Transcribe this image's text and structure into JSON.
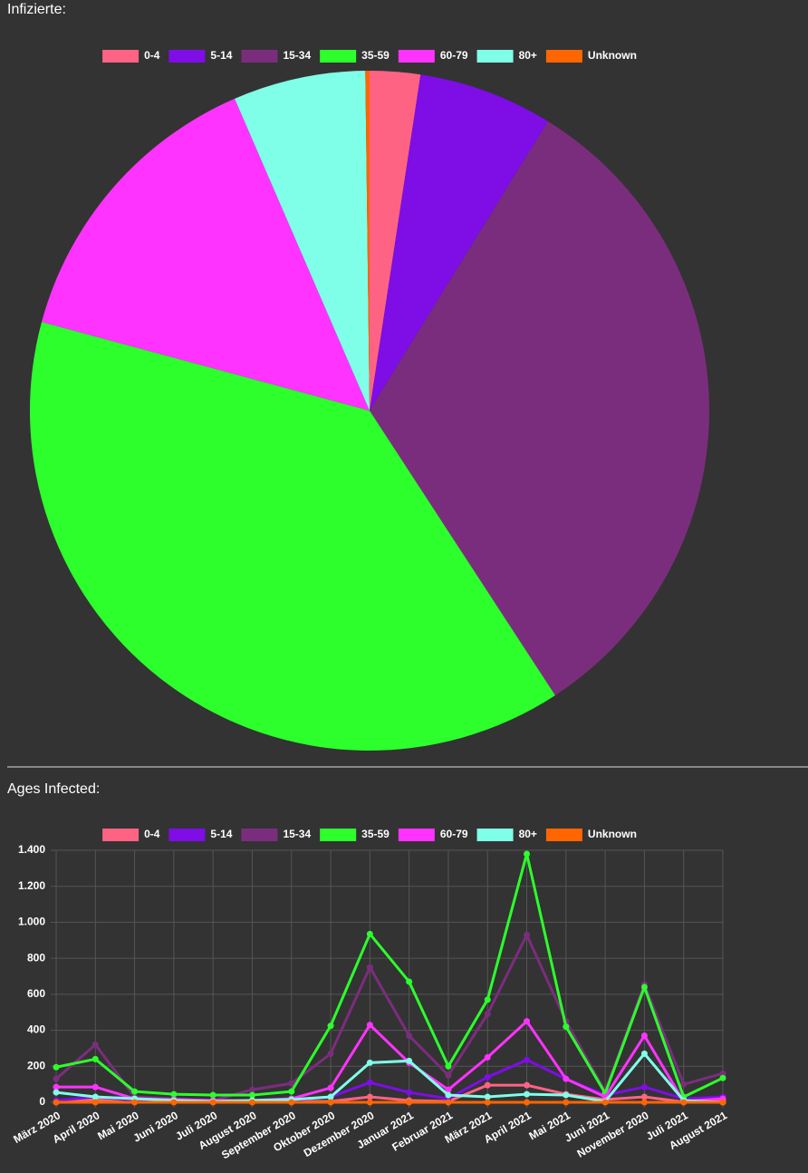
{
  "chart_data": [
    {
      "type": "pie",
      "title": "Infizierte:",
      "categories": [
        "0-4",
        "5-14",
        "15-34",
        "35-59",
        "60-79",
        "80+",
        "Unknown"
      ],
      "values": [
        2.4,
        6.4,
        32,
        38.4,
        14.3,
        6.3,
        0.2
      ],
      "colors": [
        "#ff6384",
        "#7e0de6",
        "#7b2d7d",
        "#2cff2c",
        "#ff33ff",
        "#80ffe8",
        "#ff6600"
      ]
    },
    {
      "type": "line",
      "title": "Ages Infected:",
      "categories": [
        "März 2020",
        "April 2020",
        "Mai 2020",
        "Juni 2020",
        "Juli 2020",
        "August 2020",
        "September 2020",
        "Oktober 2020",
        "Dezember 2020",
        "Januar 2021",
        "Februar 2021",
        "März 2021",
        "April 2021",
        "Mai 2021",
        "Juni 2021",
        "November 2020",
        "Juli 2021",
        "August 2021"
      ],
      "series": [
        {
          "name": "0-4",
          "color": "#ff6384",
          "values": [
            0,
            15,
            5,
            5,
            2,
            3,
            5,
            5,
            30,
            10,
            5,
            95,
            95,
            45,
            15,
            30,
            2,
            10
          ]
        },
        {
          "name": "5-14",
          "color": "#7e0de6",
          "values": [
            10,
            30,
            10,
            0,
            2,
            5,
            10,
            30,
            110,
            55,
            20,
            140,
            235,
            130,
            40,
            85,
            20,
            30
          ]
        },
        {
          "name": "15-34",
          "color": "#7b2d7d",
          "values": [
            130,
            320,
            30,
            20,
            10,
            70,
            105,
            270,
            750,
            370,
            150,
            490,
            930,
            450,
            60,
            655,
            100,
            160
          ]
        },
        {
          "name": "35-59",
          "color": "#2cff2c",
          "values": [
            195,
            240,
            60,
            45,
            40,
            40,
            60,
            425,
            935,
            670,
            200,
            570,
            1380,
            420,
            50,
            640,
            30,
            135
          ]
        },
        {
          "name": "60-79",
          "color": "#ff33ff",
          "values": [
            85,
            85,
            20,
            15,
            10,
            10,
            20,
            80,
            430,
            220,
            70,
            250,
            450,
            130,
            30,
            370,
            5,
            20
          ]
        },
        {
          "name": "80+",
          "color": "#80ffe8",
          "values": [
            55,
            30,
            20,
            10,
            5,
            10,
            15,
            30,
            220,
            230,
            40,
            30,
            45,
            40,
            5,
            270,
            10,
            0
          ]
        },
        {
          "name": "Unknown",
          "color": "#ff6600",
          "values": [
            0,
            0,
            0,
            0,
            0,
            0,
            0,
            0,
            0,
            0,
            0,
            0,
            0,
            0,
            0,
            0,
            0,
            0
          ]
        }
      ],
      "ylim": [
        0,
        1400
      ],
      "yticks": [
        0,
        200,
        400,
        600,
        800,
        {
          "value": 1000,
          "label": "1.000"
        },
        {
          "value": 1200,
          "label": "1.200"
        },
        {
          "value": 1400,
          "label": "1.400"
        }
      ],
      "grid": true
    }
  ]
}
